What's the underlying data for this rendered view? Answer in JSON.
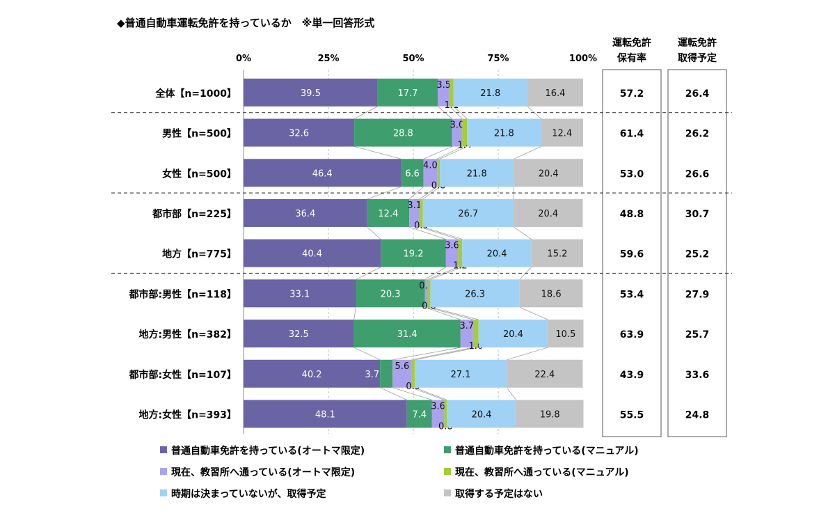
{
  "chart_data": {
    "type": "bar",
    "orientation": "horizontal",
    "stacked": true,
    "title": "◆普通自動車運転免許を持っているか　※単一回答形式",
    "x_ticks": [
      "0%",
      "25%",
      "50%",
      "75%",
      "100%"
    ],
    "xlim": [
      0,
      100
    ],
    "categories": [
      "全体【n=1000】",
      "男性【n=500】",
      "女性【n=500】",
      "都市部【n=225】",
      "地方【n=775】",
      "都市部:男性【n=118】",
      "地方:男性【n=382】",
      "都市部:女性【n=107】",
      "地方:女性【n=393】"
    ],
    "series": [
      {
        "name": "普通自動車免許を持っている(オートマ限定)",
        "color": "#6a64a4",
        "values": [
          39.5,
          32.6,
          46.4,
          36.4,
          40.4,
          33.1,
          32.5,
          40.2,
          48.1
        ],
        "labels": [
          "39.5",
          "32.6",
          "46.4",
          "36.4",
          "40.4",
          "33.1",
          "32.5",
          "40.2",
          "48.1"
        ]
      },
      {
        "name": "普通自動車免許を持っている(マニュアル)",
        "color": "#3f9e6e",
        "values": [
          17.7,
          28.8,
          6.6,
          12.4,
          19.2,
          20.3,
          31.4,
          3.7,
          7.4
        ],
        "labels": [
          "17.7",
          "28.8",
          "6.6",
          "12.4",
          "19.2",
          "20.3",
          "31.4",
          "3.7",
          "7.4"
        ]
      },
      {
        "name": "現在、教習所へ通っている(オートマ限定)",
        "color": "#a9a2ec",
        "values": [
          3.5,
          3.0,
          4.0,
          3.1,
          3.6,
          0.8,
          3.7,
          5.6,
          3.6
        ],
        "labels": [
          "3.5",
          "3.0",
          "4.0",
          "3.1",
          "3.6",
          "0.8",
          "3.7",
          "5.6",
          "3.6"
        ]
      },
      {
        "name": "現在、教習所へ通っている(マニュアル)",
        "color": "#a6cc3a",
        "values": [
          1.1,
          1.4,
          0.8,
          0.9,
          1.2,
          0.8,
          1.6,
          0.9,
          0.8
        ],
        "labels": [
          "1.1",
          "1.4",
          "0.8",
          "0.9",
          "1.2",
          "0.8",
          "1.6",
          "0.9",
          "0.8"
        ]
      },
      {
        "name": "時期は決まっていないが、取得予定",
        "color": "#9fd2f5",
        "values": [
          21.8,
          21.8,
          21.8,
          26.7,
          20.4,
          26.3,
          20.4,
          27.1,
          20.4
        ],
        "labels": [
          "21.8",
          "21.8",
          "21.8",
          "26.7",
          "20.4",
          "26.3",
          "20.4",
          "27.1",
          "20.4"
        ]
      },
      {
        "name": "取得する予定はない",
        "color": "#c4c4c4",
        "values": [
          16.4,
          12.4,
          20.4,
          20.4,
          15.2,
          18.6,
          10.5,
          22.4,
          19.8
        ],
        "labels": [
          "16.4",
          "12.4",
          "20.4",
          "20.4",
          "15.2",
          "18.6",
          "10.5",
          "22.4",
          "19.8"
        ]
      }
    ],
    "side_columns": [
      {
        "header": [
          "運転免許",
          "保有率"
        ],
        "values": [
          "57.2",
          "61.4",
          "53.0",
          "48.8",
          "59.6",
          "53.4",
          "63.9",
          "43.9",
          "55.5"
        ]
      },
      {
        "header": [
          "運転免許",
          "取得予定"
        ],
        "values": [
          "26.4",
          "26.2",
          "26.6",
          "30.7",
          "25.2",
          "27.9",
          "25.7",
          "33.6",
          "24.8"
        ]
      }
    ],
    "group_separators_after": [
      0,
      2,
      4
    ],
    "legend": {
      "placement": "bottom",
      "marker": "■"
    }
  }
}
